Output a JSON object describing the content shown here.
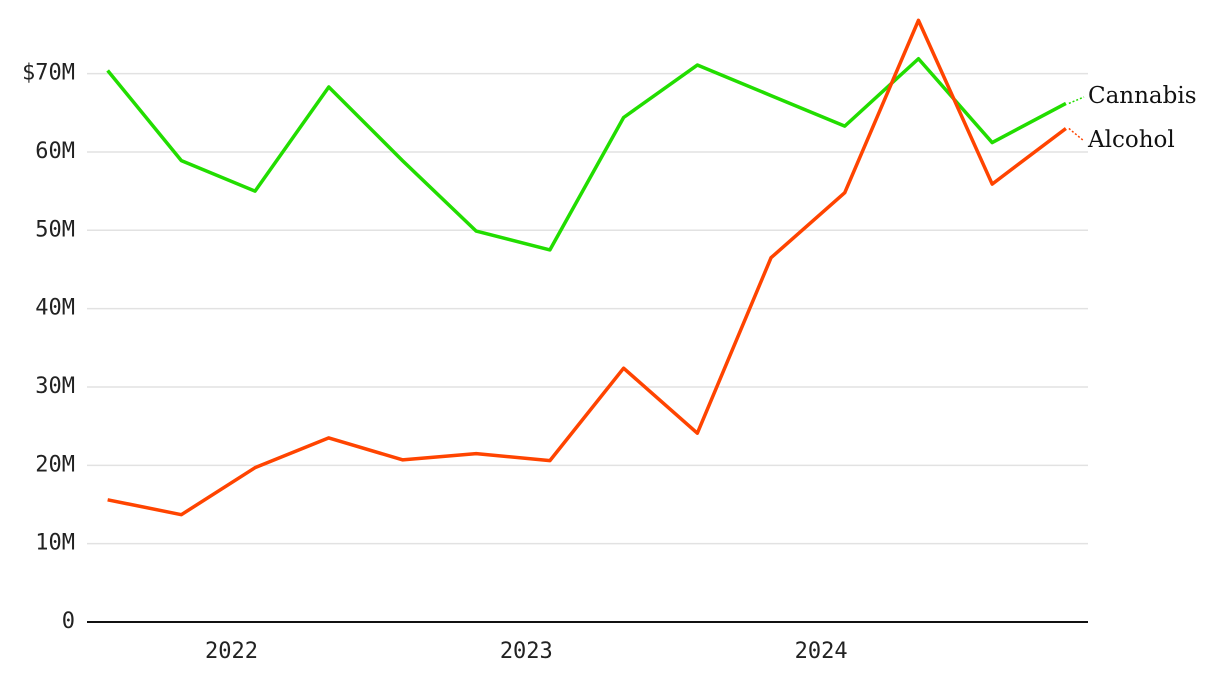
{
  "chart_data": {
    "type": "line",
    "x": [
      2021.58,
      2021.83,
      2022.08,
      2022.33,
      2022.58,
      2022.83,
      2023.08,
      2023.33,
      2023.58,
      2023.83,
      2024.08,
      2024.33,
      2024.58,
      2024.83
    ],
    "series": [
      {
        "name": "Cannabis",
        "color": "#22dd00",
        "values": [
          70.4,
          58.9,
          55.0,
          68.3,
          58.9,
          49.9,
          47.5,
          64.4,
          71.1,
          67.2,
          63.3,
          71.9,
          61.2,
          66.2
        ]
      },
      {
        "name": "Alcohol",
        "color": "#ff4400",
        "values": [
          15.6,
          13.7,
          19.7,
          23.5,
          20.7,
          21.5,
          20.6,
          32.4,
          24.1,
          46.5,
          54.8,
          76.8,
          55.9,
          63.0
        ]
      }
    ],
    "xlim": [
      2021.51,
      2024.905
    ],
    "xticks": [
      2022,
      2023,
      2024
    ],
    "ylim": [
      0,
      79.4
    ],
    "yticks": [
      0,
      {
        "value": 10,
        "label": "10M"
      },
      {
        "value": 20,
        "label": "20M"
      },
      {
        "value": 30,
        "label": "30M"
      },
      {
        "value": 40,
        "label": "40M"
      },
      {
        "value": 50,
        "label": "50M"
      },
      {
        "value": 60,
        "label": "60M"
      },
      {
        "value": 70,
        "label": "$70M"
      }
    ],
    "grid": true
  }
}
